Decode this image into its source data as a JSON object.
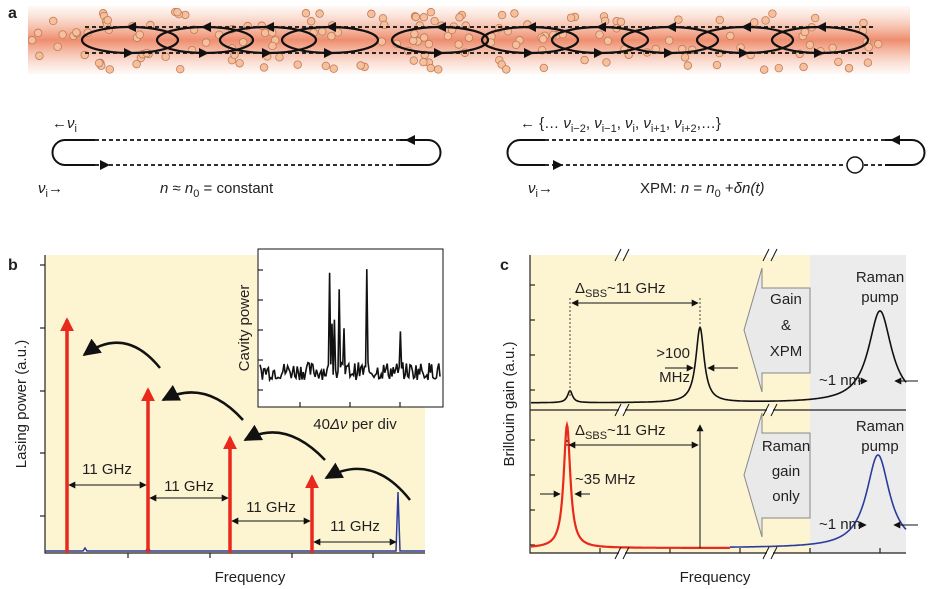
{
  "panel_a": {
    "label": "a",
    "left_top": [
      {
        "text": "←",
        "style": "normal"
      },
      {
        "text": "ν",
        "style": "italic"
      },
      {
        "text": "i",
        "style": "sub"
      }
    ],
    "left_bottom": [
      {
        "text": "ν",
        "style": "italic"
      },
      {
        "text": "i",
        "style": "sub"
      },
      {
        "text": "→",
        "style": "normal"
      }
    ],
    "left_equation": [
      {
        "text": "n",
        "style": "italic"
      },
      {
        "text": " ≈ ",
        "style": "normal"
      },
      {
        "text": "n",
        "style": "italic"
      },
      {
        "text": "0",
        "style": "sub"
      },
      {
        "text": " = constant",
        "style": "normal"
      }
    ],
    "right_top": [
      {
        "text": "← {… ",
        "style": "normal"
      },
      {
        "text": "ν",
        "style": "italic"
      },
      {
        "text": "i−2",
        "style": "sub"
      },
      {
        "text": ", ",
        "style": "normal"
      },
      {
        "text": "ν",
        "style": "italic"
      },
      {
        "text": "i−1",
        "style": "sub"
      },
      {
        "text": ", ",
        "style": "normal"
      },
      {
        "text": "ν",
        "style": "italic"
      },
      {
        "text": "i",
        "style": "sub"
      },
      {
        "text": ", ",
        "style": "normal"
      },
      {
        "text": "ν",
        "style": "italic"
      },
      {
        "text": "i+1",
        "style": "sub"
      },
      {
        "text": ", ",
        "style": "normal"
      },
      {
        "text": "ν",
        "style": "italic"
      },
      {
        "text": "i+2",
        "style": "sub"
      },
      {
        "text": ",…}",
        "style": "normal"
      }
    ],
    "right_bottom": [
      {
        "text": "ν",
        "style": "italic"
      },
      {
        "text": "i",
        "style": "sub"
      },
      {
        "text": "→",
        "style": "normal"
      }
    ],
    "right_equation": [
      {
        "text": "XPM: ",
        "style": "normal"
      },
      {
        "text": "n",
        "style": "italic"
      },
      {
        "text": " = ",
        "style": "normal"
      },
      {
        "text": "n",
        "style": "italic"
      },
      {
        "text": "0",
        "style": "sub"
      },
      {
        "text": " +",
        "style": "normal"
      },
      {
        "text": "δn(t)",
        "style": "italic"
      }
    ]
  },
  "panel_b": {
    "label": "b",
    "y_label": "Lasing power (a.u.)",
    "x_label": "Frequency",
    "inset_y_label": "Cavity power",
    "inset_x_label": [
      {
        "text": "40",
        "style": "normal"
      },
      {
        "text": "Δν",
        "style": "italic"
      },
      {
        "text": " per div",
        "style": "normal"
      }
    ],
    "spacings": [
      "11 GHz",
      "11 GHz",
      "11 GHz",
      "11 GHz"
    ]
  },
  "panel_c": {
    "label": "c",
    "y_label": "Brillouin gain (a.u.)",
    "x_label": "Frequency",
    "top": {
      "shift": [
        {
          "text": "Δ",
          "style": "normal"
        },
        {
          "text": "SBS",
          "style": "sub"
        },
        {
          "text": "~11 GHz",
          "style": "normal"
        }
      ],
      "linewidth": [
        ">100",
        "MHz"
      ],
      "arrow_text": [
        "Gain",
        "&",
        "XPM"
      ],
      "pump": [
        "Raman",
        "pump"
      ],
      "pump_width": "~1 nm"
    },
    "bottom": {
      "shift": [
        {
          "text": "Δ",
          "style": "normal"
        },
        {
          "text": "SBS",
          "style": "sub"
        },
        {
          "text": "~11 GHz",
          "style": "normal"
        }
      ],
      "linewidth": "~35 MHz",
      "arrow_text": [
        "Raman",
        "gain",
        "only"
      ],
      "pump": [
        "Raman",
        "pump"
      ],
      "pump_width": "~1 nm"
    }
  }
}
